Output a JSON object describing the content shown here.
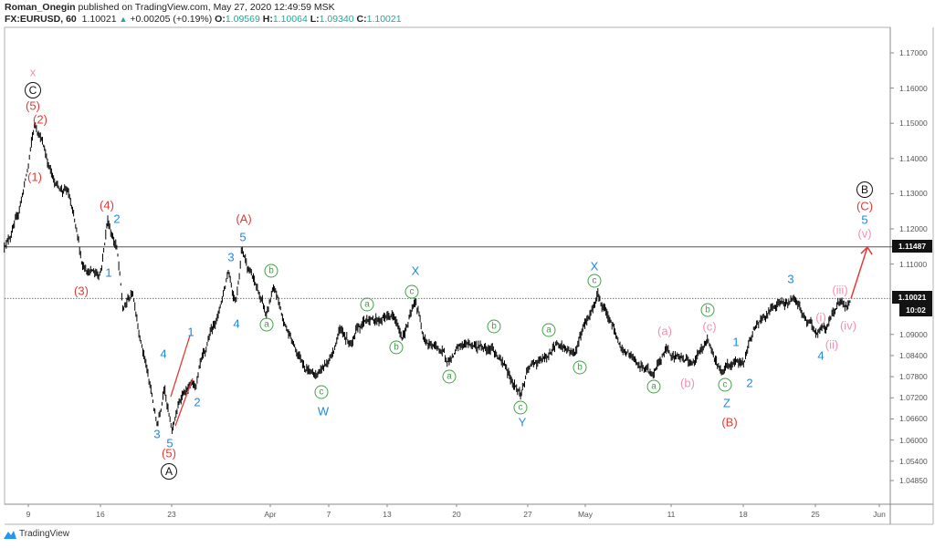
{
  "header": {
    "author": "Roman_Onegin",
    "published": "published on TradingView.com, May 27, 2020 12:49:59 MSK",
    "symbol": "FX:EURUSD, 60",
    "last": "1.10021",
    "change": "+0.00205 (+0.19%)",
    "o_label": "O:",
    "o": "1.09569",
    "h_label": "H:",
    "h": "1.10064",
    "l_label": "L:",
    "l": "1.09340",
    "c_label": "C:",
    "c": "1.10021",
    "direction_icon": "triangle-up-icon"
  },
  "price_axis": {
    "ticks": [
      "1.17000",
      "1.16000",
      "1.15000",
      "1.14000",
      "1.13000",
      "1.12000",
      "1.11000",
      "1.09000",
      "1.08400",
      "1.07800",
      "1.07200",
      "1.06600",
      "1.06000",
      "1.05400",
      "1.04850"
    ],
    "level_label": "1.11487",
    "current_label": "1.10021",
    "countdown": "10:02"
  },
  "time_axis": {
    "ticks": [
      "9",
      "16",
      "23",
      "Apr",
      "7",
      "13",
      "20",
      "27",
      "May",
      "11",
      "18",
      "25",
      "Jun"
    ]
  },
  "footer": {
    "brand": "TradingView"
  },
  "colors": {
    "candles": "#000000",
    "wave_red": "#e53935",
    "wave_blue": "#1e88e5",
    "wave_green": "#43a047",
    "wave_pink": "#f48fb1",
    "up": "#26a69a"
  },
  "annotations": [
    {
      "text": "x",
      "kind": "pink"
    },
    {
      "text": "C",
      "kind": "black"
    },
    {
      "text": "(5)",
      "kind": "red"
    },
    {
      "text": "(2)",
      "kind": "red"
    },
    {
      "text": "(1)",
      "kind": "red"
    },
    {
      "text": "(4)",
      "kind": "red"
    },
    {
      "text": "2",
      "kind": "blue"
    },
    {
      "text": "1",
      "kind": "blue"
    },
    {
      "text": "(3)",
      "kind": "red"
    },
    {
      "text": "(A)",
      "kind": "red"
    },
    {
      "text": "5",
      "kind": "blue"
    },
    {
      "text": "3",
      "kind": "blue"
    },
    {
      "text": "4",
      "kind": "blue"
    },
    {
      "text": "b",
      "kind": "green"
    },
    {
      "text": "a",
      "kind": "green"
    },
    {
      "text": "1",
      "kind": "blue"
    },
    {
      "text": "4",
      "kind": "blue"
    },
    {
      "text": "2",
      "kind": "blue"
    },
    {
      "text": "3",
      "kind": "blue"
    },
    {
      "text": "5",
      "kind": "blue"
    },
    {
      "text": "(5)",
      "kind": "red"
    },
    {
      "text": "A",
      "kind": "black"
    },
    {
      "text": "c",
      "kind": "green"
    },
    {
      "text": "W",
      "kind": "blue"
    },
    {
      "text": "X",
      "kind": "blue"
    },
    {
      "text": "c",
      "kind": "green"
    },
    {
      "text": "a",
      "kind": "green"
    },
    {
      "text": "b",
      "kind": "green"
    },
    {
      "text": "a",
      "kind": "green"
    },
    {
      "text": "b",
      "kind": "green"
    },
    {
      "text": "c",
      "kind": "green"
    },
    {
      "text": "Y",
      "kind": "blue"
    },
    {
      "text": "a",
      "kind": "green"
    },
    {
      "text": "b",
      "kind": "green"
    },
    {
      "text": "X",
      "kind": "blue"
    },
    {
      "text": "c",
      "kind": "green"
    },
    {
      "text": "(a)",
      "kind": "pink"
    },
    {
      "text": "b",
      "kind": "green"
    },
    {
      "text": "(c)",
      "kind": "pink"
    },
    {
      "text": "(b)",
      "kind": "pink"
    },
    {
      "text": "a",
      "kind": "green"
    },
    {
      "text": "1",
      "kind": "blue"
    },
    {
      "text": "c",
      "kind": "green"
    },
    {
      "text": "2",
      "kind": "blue"
    },
    {
      "text": "Z",
      "kind": "blue"
    },
    {
      "text": "(B)",
      "kind": "red"
    },
    {
      "text": "3",
      "kind": "blue"
    },
    {
      "text": "(i)",
      "kind": "pink"
    },
    {
      "text": "(ii)",
      "kind": "pink"
    },
    {
      "text": "(iii)",
      "kind": "pink"
    },
    {
      "text": "(iv)",
      "kind": "pink"
    },
    {
      "text": "4",
      "kind": "blue"
    },
    {
      "text": "B",
      "kind": "black"
    },
    {
      "text": "(C)",
      "kind": "red"
    },
    {
      "text": "5",
      "kind": "blue"
    },
    {
      "text": "(v)",
      "kind": "pink"
    }
  ],
  "chart_data": {
    "type": "line",
    "symbol": "EURUSD",
    "interval": "60",
    "ylim": [
      1.0485,
      1.175
    ],
    "xlim": [
      "2020-03-05",
      "2020-06-01"
    ],
    "horizontal_levels": [
      1.11487,
      1.10021
    ],
    "price_path": [
      [
        "2020-03-05T08",
        1.1148
      ],
      [
        "2020-03-06T07",
        1.1239
      ],
      [
        "2020-03-06T23",
        1.1369
      ],
      [
        "2020-03-09T11",
        1.1499
      ],
      [
        "2020-03-09T21",
        1.146
      ],
      [
        "2020-03-10T20",
        1.133
      ],
      [
        "2020-03-11T19",
        1.1304
      ],
      [
        "2020-03-12T18",
        1.1096
      ],
      [
        "2020-03-16T00",
        1.107
      ],
      [
        "2020-03-16T12",
        1.1226
      ],
      [
        "2020-03-17T04",
        1.1148
      ],
      [
        "2020-03-17T14",
        1.0966
      ],
      [
        "2020-03-18T06",
        1.1018
      ],
      [
        "2020-03-19T05",
        1.0809
      ],
      [
        "2020-03-19T23",
        1.064
      ],
      [
        "2020-03-20T11",
        1.0757
      ],
      [
        "2020-03-20T23",
        1.0627
      ],
      [
        "2020-03-23T17",
        1.0731
      ],
      [
        "2020-03-24T16",
        1.0757
      ],
      [
        "2020-03-25T07",
        1.0848
      ],
      [
        "2020-03-26T06",
        1.0966
      ],
      [
        "2020-03-26T22",
        1.1083
      ],
      [
        "2020-03-27T10",
        1.0992
      ],
      [
        "2020-03-27T20",
        1.1148
      ],
      [
        "2020-03-30T19",
        1.1044
      ],
      [
        "2020-03-31T13",
        1.0953
      ],
      [
        "2020-04-01T02",
        1.1031
      ],
      [
        "2020-04-01T17",
        1.094
      ],
      [
        "2020-04-02T16",
        1.0848
      ],
      [
        "2020-04-03T22",
        1.0783
      ],
      [
        "2020-04-06T21",
        1.0822
      ],
      [
        "2020-04-07T15",
        1.0914
      ],
      [
        "2020-04-08T11",
        1.0874
      ],
      [
        "2020-04-09T10",
        1.094
      ],
      [
        "2020-04-13T08",
        1.0953
      ],
      [
        "2020-04-13T23",
        1.0888
      ],
      [
        "2020-04-14T22",
        1.0992
      ],
      [
        "2020-04-15T13",
        1.0888
      ],
      [
        "2020-04-16T12",
        1.0861
      ],
      [
        "2020-04-17T03",
        1.0822
      ],
      [
        "2020-04-20T09",
        1.0874
      ],
      [
        "2020-04-22T07",
        1.0861
      ],
      [
        "2020-04-22T22",
        1.0822
      ],
      [
        "2020-04-24T05",
        1.0731
      ],
      [
        "2020-04-24T20",
        1.0809
      ],
      [
        "2020-04-28T02",
        1.0835
      ],
      [
        "2020-04-28T18",
        1.0874
      ],
      [
        "2020-04-30T00",
        1.0848
      ],
      [
        "2020-04-30T15",
        1.0927
      ],
      [
        "2020-05-01T14",
        1.1018
      ],
      [
        "2020-05-04T06",
        1.0953
      ],
      [
        "2020-05-05T04",
        1.0861
      ],
      [
        "2020-05-06T11",
        1.0809
      ],
      [
        "2020-05-07T10",
        1.0783
      ],
      [
        "2020-05-08T08",
        1.0861
      ],
      [
        "2020-05-11T07",
        1.0835
      ],
      [
        "2020-05-12T06",
        1.0822
      ],
      [
        "2020-05-13T05",
        1.0888
      ],
      [
        "2020-05-14T04",
        1.0796
      ],
      [
        "2020-05-14T19",
        1.0809
      ],
      [
        "2020-05-15T18",
        1.0822
      ],
      [
        "2020-05-18T09",
        1.0914
      ],
      [
        "2020-05-19T08",
        1.0953
      ],
      [
        "2020-05-19T23",
        1.0979
      ],
      [
        "2020-05-21T06",
        1.1005
      ],
      [
        "2020-05-21T21",
        1.0953
      ],
      [
        "2020-05-22T20",
        1.0901
      ],
      [
        "2020-05-25T11",
        1.0914
      ],
      [
        "2020-05-26T07",
        1.0992
      ],
      [
        "2020-05-26T22",
        1.0979
      ],
      [
        "2020-05-27T04",
        1.10021
      ]
    ],
    "projection": [
      [
        "2020-05-27T04",
        1.10021
      ],
      [
        "2020-05-28T06",
        1.1148
      ]
    ]
  }
}
